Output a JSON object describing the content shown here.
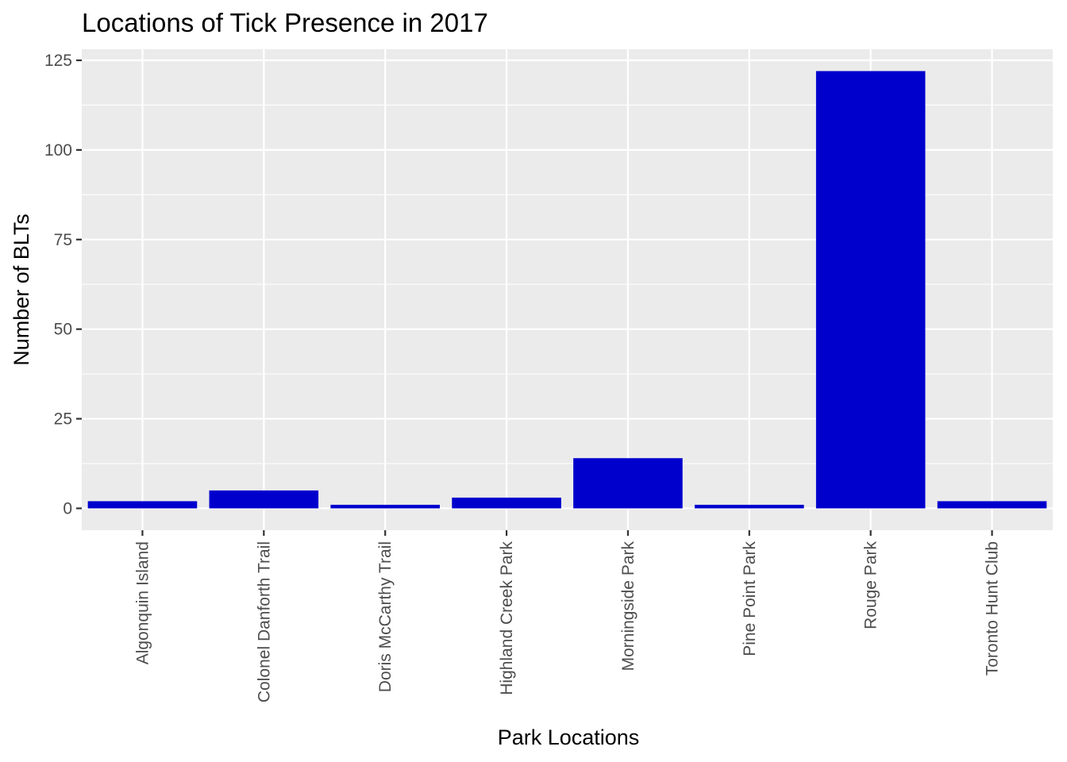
{
  "chart_data": {
    "type": "bar",
    "title": "Locations of Tick Presence in 2017",
    "xlabel": "Park Locations",
    "ylabel": "Number of BLTs",
    "categories": [
      "Algonquin Island",
      "Colonel Danforth Trail",
      "Doris McCarthy Trail",
      "Highland Creek Park",
      "Morningside Park",
      "Pine Point Park",
      "Rouge Park",
      "Toronto Hunt Club"
    ],
    "values": [
      2,
      5,
      1,
      3,
      14,
      1,
      122,
      2
    ],
    "ylim": [
      -6.1,
      128.1
    ],
    "yticks": [
      0,
      25,
      50,
      75,
      100,
      125
    ],
    "grid": true,
    "legend": "none",
    "colors": {
      "bar": "#0000CD",
      "panel": "#EBEBEB",
      "grid_major": "#FFFFFF",
      "tick_text": "#4D4D4D"
    }
  }
}
